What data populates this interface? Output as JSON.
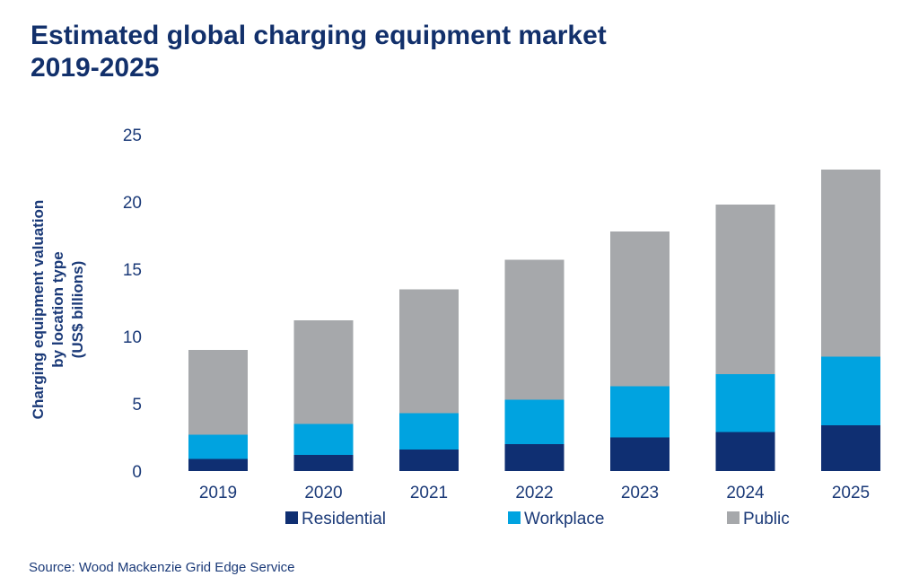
{
  "title_line1": "Estimated global charging equipment market",
  "title_line2": "2019-2025",
  "source": "Source: Wood Mackenzie Grid Edge Service",
  "colors": {
    "title": "#12306b",
    "axis_text": "#1b3a78",
    "residential": "#0f2f72",
    "workplace": "#00a3e0",
    "public": "#a6a8ab"
  },
  "chart_data": {
    "type": "bar",
    "stacked": true,
    "title": "Estimated global charging equipment market 2019-2025",
    "ylabel_lines": [
      "Charging equipment valuation",
      "by location type",
      "(US$ billions)"
    ],
    "xlabel": "",
    "ylim": [
      0,
      25
    ],
    "yticks": [
      0,
      5,
      10,
      15,
      20,
      25
    ],
    "grid": false,
    "legend_position": "bottom",
    "categories": [
      "2019",
      "2020",
      "2021",
      "2022",
      "2023",
      "2024",
      "2025"
    ],
    "series": [
      {
        "name": "Residential",
        "color": "#0f2f72",
        "values": [
          0.9,
          1.2,
          1.6,
          2.0,
          2.5,
          2.9,
          3.4
        ]
      },
      {
        "name": "Workplace",
        "color": "#00a3e0",
        "values": [
          1.8,
          2.3,
          2.7,
          3.3,
          3.8,
          4.3,
          5.1
        ]
      },
      {
        "name": "Public",
        "color": "#a6a8ab",
        "values": [
          6.3,
          7.7,
          9.2,
          10.4,
          11.5,
          12.6,
          13.9
        ]
      }
    ]
  }
}
